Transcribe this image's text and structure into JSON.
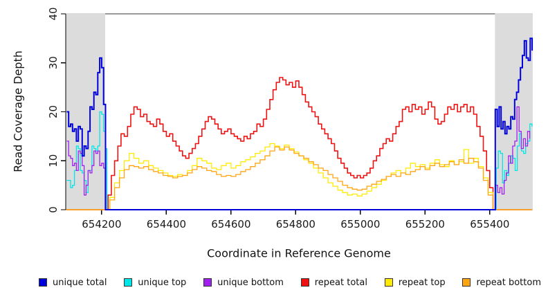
{
  "figure": {
    "x_axis_label": "Coordinate in Reference Genome",
    "y_axis_label": "Read Coverage Depth"
  },
  "chart_data": {
    "type": "line",
    "step": true,
    "title": "",
    "xlabel": "Coordinate in Reference Genome",
    "ylabel": "Read Coverage Depth",
    "xlim": [
      654089,
      655533
    ],
    "ylim": [
      0,
      40
    ],
    "x_ticks": [
      654200,
      654400,
      654600,
      654800,
      655000,
      655200,
      655400
    ],
    "y_ticks": [
      0,
      10,
      20,
      30,
      40
    ],
    "grid": false,
    "axis_color": "#000000",
    "background_bands": [
      {
        "x1": 654089,
        "x2": 654211,
        "color": "#DCDCDC"
      },
      {
        "x1": 655416,
        "x2": 655533,
        "color": "#DCDCDC"
      }
    ],
    "legend": {
      "position": "bottom",
      "entries": [
        {
          "label": "unique total",
          "color": "#0000DC"
        },
        {
          "label": "unique top",
          "color": "#00E6E6"
        },
        {
          "label": "unique bottom",
          "color": "#A020F0"
        },
        {
          "label": "repeat total",
          "color": "#EE1111"
        },
        {
          "label": "repeat top",
          "color": "#FFEB00"
        },
        {
          "label": "repeat bottom",
          "color": "#FFA510"
        }
      ]
    },
    "series": [
      {
        "name": "unique total",
        "color": "#0000DC",
        "line_width": 2,
        "z": 6,
        "segments": [
          {
            "x0": 654092,
            "dx": 6,
            "values": [
              20,
              17,
              17.5,
              16,
              16.5,
              14,
              17,
              16.5,
              11,
              13,
              12.5,
              16,
              21,
              20.5,
              24,
              23.5,
              28,
              31,
              29,
              21.5
            ]
          },
          {
            "x0": 654212,
            "dx": 1203,
            "values": [
              0,
              0
            ]
          },
          {
            "x0": 655417,
            "dx": 6,
            "values": [
              20.5,
              17,
              21,
              16.5,
              18,
              15.5,
              17,
              16.5,
              19,
              18.5,
              22.5,
              24,
              26.5,
              29,
              31.5,
              34.5,
              31,
              30.5,
              35,
              32.5
            ]
          }
        ]
      },
      {
        "name": "unique top",
        "color": "#00E6E6",
        "line_width": 1.3,
        "z": 4,
        "segments": [
          {
            "x0": 654092,
            "dx": 6,
            "values": [
              6,
              6,
              4.5,
              5,
              8,
              13,
              12.5,
              8,
              7.5,
              6,
              3.5,
              8,
              8,
              13,
              12.5,
              12,
              13,
              20,
              19.5,
              16,
              12.5
            ]
          },
          {
            "x0": 654216,
            "dx": 1200,
            "values": [
              0,
              0
            ]
          },
          {
            "x0": 655420,
            "dx": 6.5,
            "values": [
              8.5,
              12,
              11.5,
              5.5,
              8,
              7,
              9.5,
              11,
              10.5,
              8,
              13,
              15.5,
              12,
              11.5,
              13.5,
              14,
              17.5,
              17
            ]
          }
        ]
      },
      {
        "name": "unique bottom",
        "color": "#A020F0",
        "line_width": 1.3,
        "z": 5,
        "segments": [
          {
            "x0": 654092,
            "dx": 6,
            "values": [
              14,
              11,
              10.5,
              9,
              9.5,
              8,
              12,
              11.5,
              9,
              3,
              5,
              8,
              7.5,
              9,
              12,
              11.5,
              12,
              9,
              9.5,
              8.5
            ]
          },
          {
            "x0": 654211,
            "dx": 1204,
            "values": [
              0,
              0
            ]
          },
          {
            "x0": 655418,
            "dx": 6.6,
            "values": [
              5,
              3.5,
              4.5,
              3.2,
              6,
              7.5,
              11,
              9.5,
              13,
              14,
              21,
              16,
              12.5,
              14.5,
              13,
              16,
              14.5
            ]
          }
        ]
      },
      {
        "name": "repeat total",
        "color": "#EE1111",
        "line_width": 1.6,
        "z": 1,
        "segments": [
          {
            "x0": 654090,
            "dx": 1,
            "values": [
              0
            ]
          },
          {
            "x0": 654210,
            "dx": 10,
            "values": [
              0,
              3,
              7,
              10,
              13,
              15.5,
              15,
              17,
              19.5,
              21,
              20.5,
              19,
              19.5,
              18,
              17.5,
              17,
              18.5,
              17.5,
              16,
              15,
              15.5,
              14,
              13,
              12,
              11,
              10.5,
              11.5,
              12.5,
              13.5,
              15,
              16.5,
              18,
              19,
              18.5,
              17.5,
              16.5,
              15.5,
              16,
              16.5,
              15.5,
              15,
              14.5,
              14,
              15,
              14.5,
              15.5,
              16,
              17.5,
              17,
              18.5,
              20.5,
              22.5,
              24.5,
              26,
              27,
              26.5,
              25.5,
              26,
              25,
              26.3,
              25,
              23.5,
              22,
              21,
              20,
              19,
              17.5,
              16.5,
              15.5,
              14.5,
              13.5,
              12,
              10.5,
              9.5,
              8.5,
              7.5,
              7,
              6.5,
              7,
              6.5,
              7,
              7.5,
              8.5,
              10,
              11,
              12.5,
              13.5,
              14.5,
              14,
              15.5,
              17,
              18,
              20.5,
              21,
              20,
              21.5,
              20.5,
              21,
              19.5,
              20.5,
              22,
              21,
              18.5,
              17.5,
              18,
              19.5,
              21,
              20.5,
              21.5,
              20,
              21,
              21.5,
              20,
              21,
              19.5,
              17,
              15,
              12,
              8,
              4.5,
              0
            ]
          },
          {
            "x0": 655531,
            "dx": 1,
            "values": [
              0
            ]
          }
        ]
      },
      {
        "name": "repeat top",
        "color": "#FFEB00",
        "line_width": 1.3,
        "z": 2,
        "segments": [
          {
            "x0": 654090,
            "dx": 1,
            "values": [
              0
            ]
          },
          {
            "x0": 654210,
            "dx": 15,
            "values": [
              0,
              2.5,
              5.5,
              8,
              10,
              11.5,
              10.5,
              9.5,
              10,
              9,
              8.5,
              8,
              7.5,
              7,
              6.8,
              7.2,
              7,
              8,
              9,
              10.5,
              10,
              9.5,
              8.5,
              8.2,
              9,
              9.5,
              8.5,
              9,
              9.8,
              10.2,
              10.8,
              11.5,
              12,
              12.8,
              13.5,
              13,
              12.5,
              13.2,
              12.5,
              11.8,
              11,
              10.2,
              9.5,
              8.5,
              7.5,
              6.5,
              5.5,
              4.8,
              4,
              3.5,
              3,
              3.2,
              2.8,
              3.2,
              3.8,
              4.5,
              5.2,
              6,
              6.8,
              7.5,
              8,
              7.5,
              8.5,
              9.5,
              8.8,
              9.2,
              8.5,
              9.5,
              10.2,
              9.2,
              8.8,
              10,
              9.2,
              9.8,
              12.3,
              9.5,
              10.5,
              8.8,
              6.5,
              3.5,
              0
            ]
          },
          {
            "x0": 655531,
            "dx": 1,
            "values": [
              0
            ]
          }
        ]
      },
      {
        "name": "repeat bottom",
        "color": "#FFA510",
        "line_width": 1.3,
        "z": 3,
        "segments": [
          {
            "x0": 654090,
            "dx": 1,
            "values": [
              0
            ]
          },
          {
            "x0": 654210,
            "dx": 15,
            "values": [
              0,
              2,
              4.5,
              6.5,
              8.2,
              9,
              8.8,
              8.5,
              8.8,
              8.2,
              7.8,
              7.5,
              7,
              6.8,
              6.5,
              6.8,
              7,
              7.5,
              8.2,
              8.8,
              8.5,
              8,
              7.8,
              7.2,
              6.8,
              7,
              6.8,
              7.2,
              7.8,
              8.2,
              8.8,
              9.5,
              10.2,
              11,
              12,
              12.8,
              12.2,
              12.8,
              12.2,
              11.5,
              11,
              10.5,
              9.8,
              9.2,
              8.5,
              8,
              7.2,
              6.5,
              5.8,
              5,
              4.5,
              4.2,
              4,
              4.2,
              4.8,
              5.2,
              5.8,
              6.2,
              6.8,
              7.2,
              6.8,
              7.5,
              7.2,
              7.8,
              8.2,
              8.8,
              8.2,
              9,
              9.5,
              8.8,
              9.2,
              9.8,
              9.2,
              10.2,
              9.5,
              10.5,
              9.8,
              8.5,
              6,
              3,
              0
            ]
          },
          {
            "x0": 655531,
            "dx": 1,
            "values": [
              0
            ]
          }
        ]
      }
    ]
  }
}
